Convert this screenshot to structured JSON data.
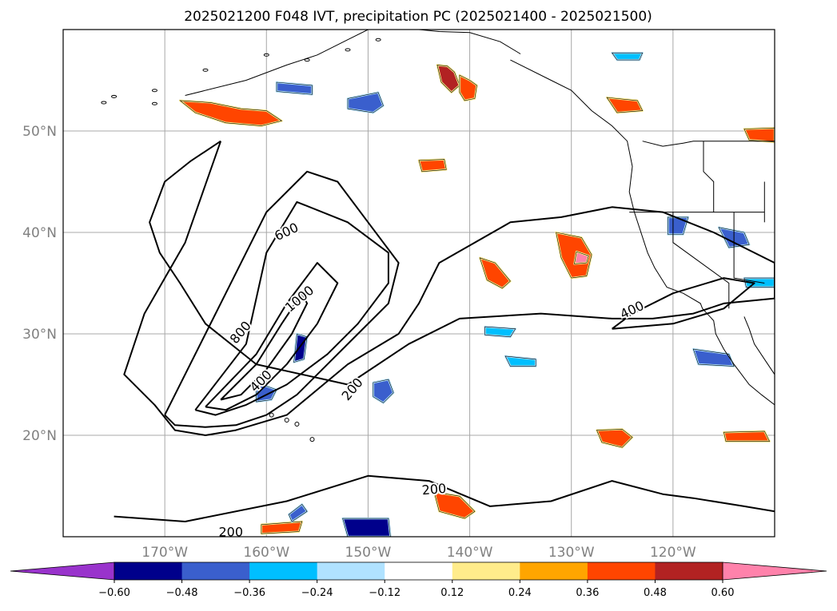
{
  "chart_data": {
    "type": "contour-map",
    "title": "2025021200 F048 IVT, precipitation PC (2025021400 - 2025021500)",
    "x_axis": {
      "range": [
        -180,
        -110
      ],
      "ticks": [
        -170,
        -160,
        -150,
        -140,
        -130,
        -120
      ],
      "tick_labels": [
        "170°W",
        "160°W",
        "150°W",
        "140°W",
        "130°W",
        "120°W"
      ]
    },
    "y_axis": {
      "range": [
        10,
        60
      ],
      "ticks": [
        20,
        30,
        40,
        50
      ],
      "tick_labels": [
        "20°N",
        "30°N",
        "40°N",
        "50°N"
      ]
    },
    "grid": true,
    "ivt_contour_levels": [
      200,
      400,
      600,
      800,
      1000
    ],
    "contour_labels": [
      "600",
      "1000",
      "800",
      "400",
      "200",
      "400",
      "200",
      "200"
    ],
    "colorbar": {
      "boundaries": [
        -0.6,
        -0.48,
        -0.36,
        -0.24,
        -0.12,
        0.12,
        0.24,
        0.36,
        0.48,
        0.6
      ],
      "tick_labels": [
        "−0.60",
        "−0.48",
        "−0.36",
        "−0.24",
        "−0.12",
        "0.12",
        "0.24",
        "0.36",
        "0.48",
        "0.60"
      ],
      "colors": [
        "#9933cc",
        "#00008b",
        "#3a5fcd",
        "#00bfff",
        "#b0e2ff",
        "#ffffff",
        "#ffec8b",
        "#ffa500",
        "#ff4500",
        "#b22222",
        "#ff82ab"
      ],
      "extend": "both"
    },
    "ivt_contours": [
      {
        "level": 200,
        "lon": [
          -164.5,
          -167.5,
          -170,
          -171.5,
          -170.5,
          -168.5,
          -166,
          -161,
          -152,
          -146,
          -141,
          -133,
          -126,
          -122,
          -118,
          -115,
          -110,
          -110,
          -116,
          -121,
          -126,
          -131,
          -136,
          -143,
          -145,
          -147,
          -152,
          -158,
          -163,
          -166,
          -169,
          -171,
          -174,
          -172,
          -168,
          -164.5
        ],
        "lat": [
          49,
          47,
          45,
          41,
          38,
          35,
          31,
          27,
          25,
          29,
          31.5,
          32,
          31.5,
          31.5,
          32,
          33,
          33.5,
          37,
          40,
          42,
          42.5,
          41.5,
          41,
          37,
          33,
          30,
          27,
          22,
          20.5,
          20,
          20.5,
          23,
          26,
          32,
          39,
          49
        ]
      },
      {
        "level": 400,
        "lon": [
          -170,
          -166,
          -160,
          -156,
          -153,
          -150,
          -147,
          -148,
          -151,
          -154,
          -157,
          -160,
          -163,
          -166,
          -169,
          -170
        ],
        "lat": [
          22,
          30,
          42,
          46,
          45,
          41,
          37,
          33,
          30,
          27,
          24,
          22,
          21,
          20.8,
          21,
          22
        ]
      },
      {
        "level": 400,
        "lon": [
          -126,
          -120,
          -115,
          -112,
          -115,
          -120,
          -124,
          -126
        ],
        "lat": [
          30.5,
          31,
          32.5,
          35,
          35.5,
          34,
          32,
          30.5
        ]
      },
      {
        "level": 600,
        "lon": [
          -167,
          -162,
          -160,
          -157,
          -152,
          -148,
          -148,
          -151,
          -154,
          -158,
          -162,
          -165,
          -167
        ],
        "lat": [
          22.5,
          29,
          38,
          43,
          41,
          38,
          35,
          31,
          28,
          25,
          23,
          22,
          22.5
        ]
      },
      {
        "level": 800,
        "lon": [
          -166,
          -161,
          -158,
          -155,
          -153,
          -155,
          -158,
          -161,
          -164,
          -166
        ],
        "lat": [
          22.8,
          28,
          33,
          37,
          35,
          31,
          27,
          24,
          22.5,
          22.8
        ]
      },
      {
        "level": 1000,
        "lon": [
          -164.5,
          -161,
          -158.5,
          -156.5,
          -156,
          -157.5,
          -160,
          -162.5,
          -164.5
        ],
        "lat": [
          23.5,
          27,
          31,
          34,
          33,
          30,
          26.5,
          24,
          23.5
        ]
      },
      {
        "level": 200,
        "lon": [
          -175,
          -168,
          -158,
          -150,
          -144,
          -138,
          -132,
          -126,
          -121,
          -118,
          -113,
          -110
        ],
        "lat": [
          12,
          11.5,
          13.5,
          16,
          15.5,
          13,
          13.5,
          15.5,
          14.2,
          13.8,
          13,
          12.5
        ]
      }
    ],
    "precip_pc_patches": [
      {
        "value": 0.45,
        "lon": [
          -168.5,
          -165.5,
          -162.5,
          -160,
          -158.5,
          -160.5,
          -164,
          -167,
          -168.5
        ],
        "lat": [
          53,
          52.8,
          52.2,
          52,
          51,
          50.5,
          50.8,
          51.8,
          53
        ]
      },
      {
        "value": 0.52,
        "lon": [
          -143.2,
          -142.2,
          -141.5,
          -141,
          -141.8,
          -142.8,
          -143.2
        ],
        "lat": [
          56.5,
          56.4,
          55.8,
          54.5,
          53.8,
          54.8,
          56.5
        ]
      },
      {
        "value": 0.45,
        "lon": [
          -141,
          -140,
          -139.3,
          -139.5,
          -140.5,
          -141,
          -141
        ],
        "lat": [
          55.5,
          55,
          54.5,
          53.2,
          53,
          53.8,
          55.5
        ]
      },
      {
        "value": 0.42,
        "lon": [
          -131.5,
          -129,
          -128,
          -128.5,
          -130,
          -131,
          -131.5
        ],
        "lat": [
          40,
          39.5,
          37.8,
          35.7,
          35.5,
          37.5,
          40
        ]
      },
      {
        "value": 0.62,
        "lon": [
          -129.5,
          -128.3,
          -128.5,
          -129.7,
          -129.5
        ],
        "lat": [
          38.1,
          37.7,
          37,
          36.9,
          38.1
        ]
      },
      {
        "value": 0.42,
        "lon": [
          -139,
          -137.5,
          -136,
          -136.8,
          -138.3,
          -139
        ],
        "lat": [
          37.5,
          37,
          35.2,
          34.5,
          35.3,
          37.5
        ]
      },
      {
        "value": 0.42,
        "lon": [
          -127.5,
          -125,
          -124,
          -125,
          -127,
          -127.5
        ],
        "lat": [
          20.5,
          20.6,
          19.8,
          18.8,
          19.3,
          20.5
        ]
      },
      {
        "value": 0.4,
        "lon": [
          -115,
          -111,
          -110.5,
          -114.8,
          -115
        ],
        "lat": [
          20.3,
          20.4,
          19.4,
          19.4,
          20.3
        ]
      },
      {
        "value": 0.4,
        "lon": [
          -143.5,
          -141,
          -139.5,
          -140.5,
          -143,
          -143.5
        ],
        "lat": [
          14.4,
          14,
          12.5,
          11.8,
          12.5,
          14.4
        ]
      },
      {
        "value": 0.38,
        "lon": [
          -145,
          -142.5,
          -142.3,
          -144.7,
          -145
        ],
        "lat": [
          47.1,
          47.2,
          46.2,
          46,
          47.1
        ]
      },
      {
        "value": 0.38,
        "lon": [
          -126.5,
          -123.5,
          -123,
          -125.5,
          -126.5
        ],
        "lat": [
          53.3,
          53,
          52,
          51.8,
          53.3
        ]
      },
      {
        "value": 0.4,
        "lon": [
          -113,
          -110,
          -110,
          -112.5,
          -113
        ],
        "lat": [
          50.2,
          50.3,
          48.9,
          49.1,
          50.2
        ]
      },
      {
        "value": 0.38,
        "lon": [
          -160.5,
          -156.5,
          -156.8,
          -160.5,
          -160.5
        ],
        "lat": [
          11.2,
          11.5,
          10.5,
          10.3,
          11.2
        ]
      },
      {
        "value": -0.42,
        "lon": [
          -152,
          -149,
          -148.5,
          -149.5,
          -152,
          -152
        ],
        "lat": [
          53.2,
          53.8,
          52.5,
          51.8,
          52.2,
          53.2
        ]
      },
      {
        "value": -0.42,
        "lon": [
          -159,
          -155.5,
          -155.5,
          -159,
          -159
        ],
        "lat": [
          54.8,
          54.5,
          53.6,
          53.9,
          54.8
        ]
      },
      {
        "value": -0.5,
        "lon": [
          -157,
          -156,
          -156.3,
          -157.3,
          -157
        ],
        "lat": [
          30,
          29.7,
          27.5,
          27.2,
          30
        ]
      },
      {
        "value": -0.45,
        "lon": [
          -149.5,
          -148,
          -147.5,
          -148.5,
          -149.5,
          -149.5
        ],
        "lat": [
          25.2,
          25.5,
          24.2,
          23.2,
          23.8,
          25.2
        ]
      },
      {
        "value": -0.45,
        "lon": [
          -161,
          -159,
          -159.5,
          -161,
          -161
        ],
        "lat": [
          25.2,
          24.5,
          23.5,
          23.3,
          25.2
        ]
      },
      {
        "value": -0.45,
        "lon": [
          -157.5,
          -156,
          -156.5,
          -157.8,
          -157.5
        ],
        "lat": [
          11.5,
          12.5,
          13.2,
          12.2,
          11.5
        ]
      },
      {
        "value": -0.55,
        "lon": [
          -152.5,
          -148,
          -147.8,
          -152,
          -152.5
        ],
        "lat": [
          11.8,
          11.8,
          10,
          10,
          11.8
        ]
      },
      {
        "value": -0.48,
        "lon": [
          -118,
          -114.5,
          -114,
          -117.5,
          -118
        ],
        "lat": [
          28.5,
          28,
          26.8,
          27,
          28.5
        ]
      },
      {
        "value": -0.42,
        "lon": [
          -120.5,
          -118.5,
          -119,
          -120.5,
          -120.5
        ],
        "lat": [
          41.5,
          41.5,
          39.8,
          39.8,
          41.5
        ]
      },
      {
        "value": -0.4,
        "lon": [
          -115.5,
          -113,
          -112.5,
          -114.5,
          -115.5
        ],
        "lat": [
          40.5,
          40,
          38.8,
          38.5,
          40.5
        ]
      },
      {
        "value": -0.32,
        "lon": [
          -138.5,
          -135.5,
          -136,
          -138.5,
          -138.5
        ],
        "lat": [
          30.7,
          30.5,
          29.7,
          29.9,
          30.7
        ]
      },
      {
        "value": -0.3,
        "lon": [
          -136.5,
          -133.5,
          -133.5,
          -136,
          -136.5
        ],
        "lat": [
          27.8,
          27.5,
          26.8,
          26.8,
          27.8
        ]
      },
      {
        "value": -0.3,
        "lon": [
          -126,
          -123,
          -123.3,
          -125.5,
          -126
        ],
        "lat": [
          57.7,
          57.7,
          57,
          57,
          57.7
        ]
      },
      {
        "value": -0.3,
        "lon": [
          -113,
          -110,
          -110,
          -112.8,
          -113
        ],
        "lat": [
          35.5,
          35.5,
          34.6,
          34.6,
          35.5
        ]
      }
    ]
  },
  "colorbar_arrow_colors": [
    "#9933cc",
    "#ff82ab"
  ]
}
